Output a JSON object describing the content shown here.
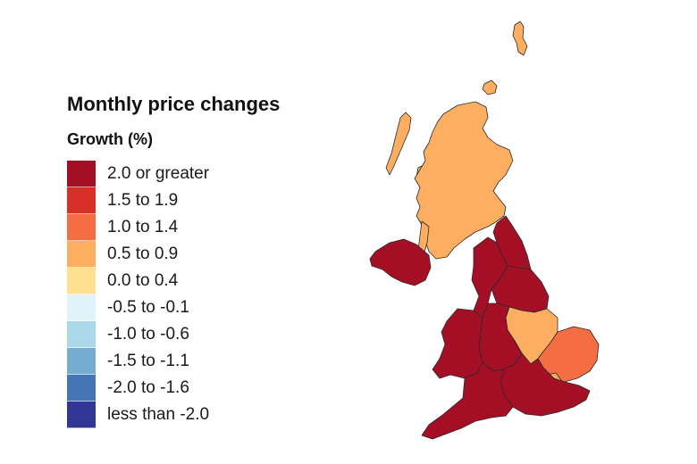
{
  "legend": {
    "title": "Monthly price changes",
    "subtitle": "Growth (%)",
    "items": [
      {
        "label": "2.0 or greater",
        "color": "#a50f26"
      },
      {
        "label": "1.5 to 1.9",
        "color": "#d73127"
      },
      {
        "label": "1.0 to 1.4",
        "color": "#f46d43"
      },
      {
        "label": "0.5 to 0.9",
        "color": "#fdae61"
      },
      {
        "label": "0.0 to 0.4",
        "color": "#fee090"
      },
      {
        "label": "-0.5 to -0.1",
        "color": "#e0f3f8"
      },
      {
        "label": "-1.0 to -0.6",
        "color": "#abd9e9"
      },
      {
        "label": "-1.5 to -1.1",
        "color": "#74add1"
      },
      {
        "label": "-2.0 to -1.6",
        "color": "#4575b4"
      },
      {
        "label": "less than -2.0",
        "color": "#313695"
      }
    ]
  },
  "regions": {
    "scotland": {
      "band": "0.5 to 0.9",
      "color": "#fdae61"
    },
    "northern_ireland": {
      "band": "2.0 or greater",
      "color": "#a50f26"
    },
    "north_east": {
      "band": "2.0 or greater",
      "color": "#a50f26"
    },
    "north_west": {
      "band": "2.0 or greater",
      "color": "#a50f26"
    },
    "yorkshire_and_the_humber": {
      "band": "2.0 or greater",
      "color": "#a50f26"
    },
    "east_midlands": {
      "band": "0.5 to 0.9",
      "color": "#fdae61"
    },
    "west_midlands": {
      "band": "2.0 or greater",
      "color": "#a50f26"
    },
    "wales": {
      "band": "2.0 or greater",
      "color": "#a50f26"
    },
    "east_of_england": {
      "band": "1.0 to 1.4",
      "color": "#f46d43"
    },
    "london": {
      "band": "0.5 to 0.9",
      "color": "#fdae61"
    },
    "south_east": {
      "band": "2.0 or greater",
      "color": "#a50f26"
    },
    "south_west": {
      "band": "2.0 or greater",
      "color": "#a50f26"
    }
  }
}
